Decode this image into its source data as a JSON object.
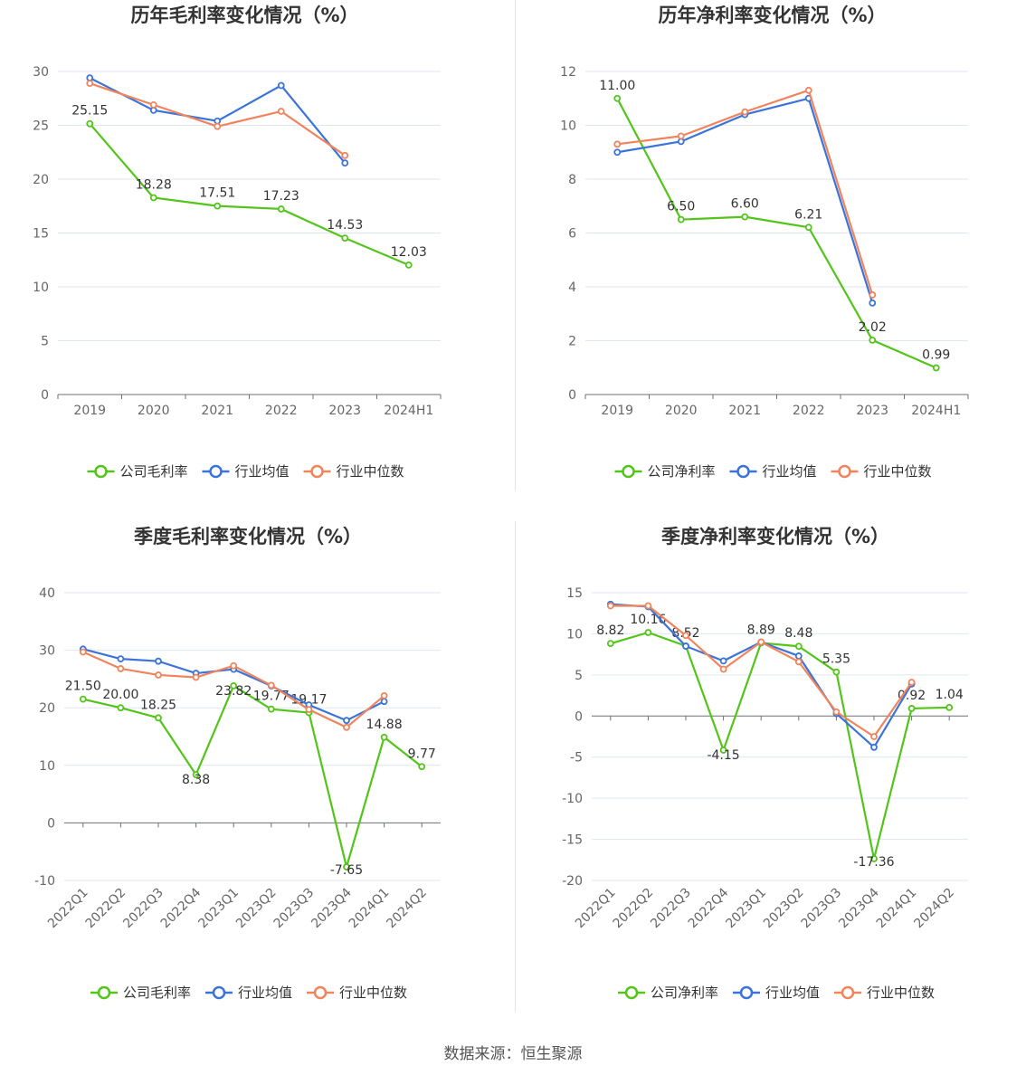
{
  "source": "数据来源：恒生聚源",
  "colors": {
    "company": "#52c41a",
    "avg": "#3b73d9",
    "median": "#f0845c"
  },
  "chart_data": [
    {
      "type": "line",
      "title": "历年毛利率变化情况（%）",
      "categories": [
        "2019",
        "2020",
        "2021",
        "2022",
        "2023",
        "2024H1"
      ],
      "ylim": [
        0,
        30
      ],
      "yticks": [
        0,
        5,
        10,
        15,
        20,
        25,
        30
      ],
      "series": [
        {
          "key": "company",
          "name": "公司毛利率",
          "values": [
            25.15,
            18.28,
            17.51,
            17.23,
            14.53,
            12.03
          ],
          "labels": [
            "25.15",
            "18.28",
            "17.51",
            "17.23",
            "14.53",
            "12.03"
          ]
        },
        {
          "key": "avg",
          "name": "行业均值",
          "values": [
            29.4,
            26.4,
            25.4,
            28.7,
            21.5,
            null
          ]
        },
        {
          "key": "median",
          "name": "行业中位数",
          "values": [
            28.9,
            26.9,
            24.9,
            26.3,
            22.2,
            null
          ]
        }
      ]
    },
    {
      "type": "line",
      "title": "历年净利率变化情况（%）",
      "categories": [
        "2019",
        "2020",
        "2021",
        "2022",
        "2023",
        "2024H1"
      ],
      "ylim": [
        0,
        12
      ],
      "yticks": [
        0,
        2,
        4,
        6,
        8,
        10,
        12
      ],
      "series": [
        {
          "key": "company",
          "name": "公司净利率",
          "values": [
            11.0,
            6.5,
            6.6,
            6.21,
            2.02,
            0.99
          ],
          "labels": [
            "11.00",
            "6.50",
            "6.60",
            "6.21",
            "2.02",
            "0.99"
          ]
        },
        {
          "key": "avg",
          "name": "行业均值",
          "values": [
            9.0,
            9.4,
            10.4,
            11.0,
            3.4,
            null
          ]
        },
        {
          "key": "median",
          "name": "行业中位数",
          "values": [
            9.3,
            9.6,
            10.5,
            11.3,
            3.7,
            null
          ]
        }
      ]
    },
    {
      "type": "line",
      "title": "季度毛利率变化情况（%）",
      "categories": [
        "2022Q1",
        "2022Q2",
        "2022Q3",
        "2022Q4",
        "2023Q1",
        "2023Q2",
        "2023Q3",
        "2023Q4",
        "2024Q1",
        "2024Q2"
      ],
      "ylim": [
        -10,
        40
      ],
      "yticks": [
        -10,
        0,
        10,
        20,
        30,
        40
      ],
      "series": [
        {
          "key": "company",
          "name": "公司毛利率",
          "values": [
            21.5,
            20.0,
            18.25,
            8.38,
            23.82,
            19.77,
            19.17,
            -7.65,
            14.88,
            9.77
          ],
          "labels": [
            "21.50",
            "20.00",
            "18.25",
            "8.38",
            "23.82",
            "19.77",
            "19.17",
            "-7.65",
            "14.88",
            "9.77"
          ]
        },
        {
          "key": "avg",
          "name": "行业均值",
          "values": [
            30.2,
            28.5,
            28.1,
            26.0,
            26.7,
            23.8,
            20.5,
            17.8,
            21.1,
            null
          ]
        },
        {
          "key": "median",
          "name": "行业中位数",
          "values": [
            29.7,
            26.8,
            25.7,
            25.3,
            27.3,
            23.9,
            19.7,
            16.6,
            22.1,
            null
          ]
        }
      ]
    },
    {
      "type": "line",
      "title": "季度净利率变化情况（%）",
      "categories": [
        "2022Q1",
        "2022Q2",
        "2022Q3",
        "2022Q4",
        "2023Q1",
        "2023Q2",
        "2023Q3",
        "2023Q4",
        "2024Q1",
        "2024Q2"
      ],
      "ylim": [
        -20,
        15
      ],
      "yticks": [
        -20,
        -15,
        -10,
        -5,
        0,
        5,
        10,
        15
      ],
      "series": [
        {
          "key": "company",
          "name": "公司净利率",
          "values": [
            8.82,
            10.16,
            8.52,
            -4.15,
            8.89,
            8.48,
            5.35,
            -17.36,
            0.92,
            1.04
          ],
          "labels": [
            "8.82",
            "10.16",
            "8.52",
            "-4.15",
            "8.89",
            "8.48",
            "5.35",
            "-17.36",
            "0.92",
            "1.04"
          ]
        },
        {
          "key": "avg",
          "name": "行业均值",
          "values": [
            13.6,
            13.3,
            8.5,
            6.7,
            9.0,
            7.3,
            0.3,
            -3.8,
            3.9,
            null
          ]
        },
        {
          "key": "median",
          "name": "行业中位数",
          "values": [
            13.4,
            13.4,
            9.8,
            5.7,
            9.0,
            6.6,
            0.5,
            -2.5,
            4.1,
            null
          ]
        }
      ]
    }
  ]
}
